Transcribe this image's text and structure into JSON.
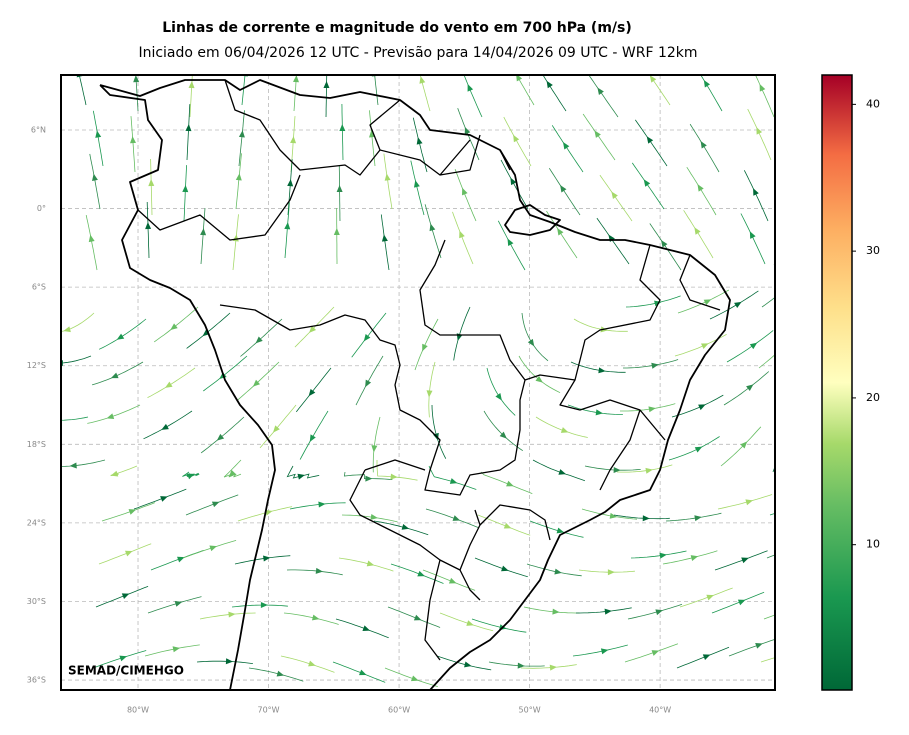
{
  "header": {
    "title": "Linhas de corrente e magnitude do vento em 700 hPa (m/s)",
    "subtitle": "Iniciado em 06/04/2026 12 UTC - Previsão para 14/04/2026 09 UTC - WRF 12km"
  },
  "map": {
    "xlim": [
      -85.9,
      -31.2
    ],
    "ylim": [
      -36.76,
      10.2
    ],
    "xticks": [
      {
        "value": -80,
        "label": "80°W"
      },
      {
        "value": -70,
        "label": "70°W"
      },
      {
        "value": -60,
        "label": "60°W"
      },
      {
        "value": -50,
        "label": "50°W"
      },
      {
        "value": -40,
        "label": "40°W"
      }
    ],
    "yticks": [
      {
        "value": 6,
        "label": "6°N"
      },
      {
        "value": 0,
        "label": "0°"
      },
      {
        "value": -6,
        "label": "6°S"
      },
      {
        "value": -12,
        "label": "12°S"
      },
      {
        "value": -18,
        "label": "18°S"
      },
      {
        "value": -24,
        "label": "24°S"
      },
      {
        "value": -30,
        "label": "30°S"
      },
      {
        "value": -36,
        "label": "36°S"
      }
    ],
    "grid": true,
    "credit": "SEMAD/CIMEHGO"
  },
  "colorbar": {
    "lim": [
      0.1,
      42
    ],
    "ticks": [
      10,
      20,
      30,
      40
    ]
  }
}
